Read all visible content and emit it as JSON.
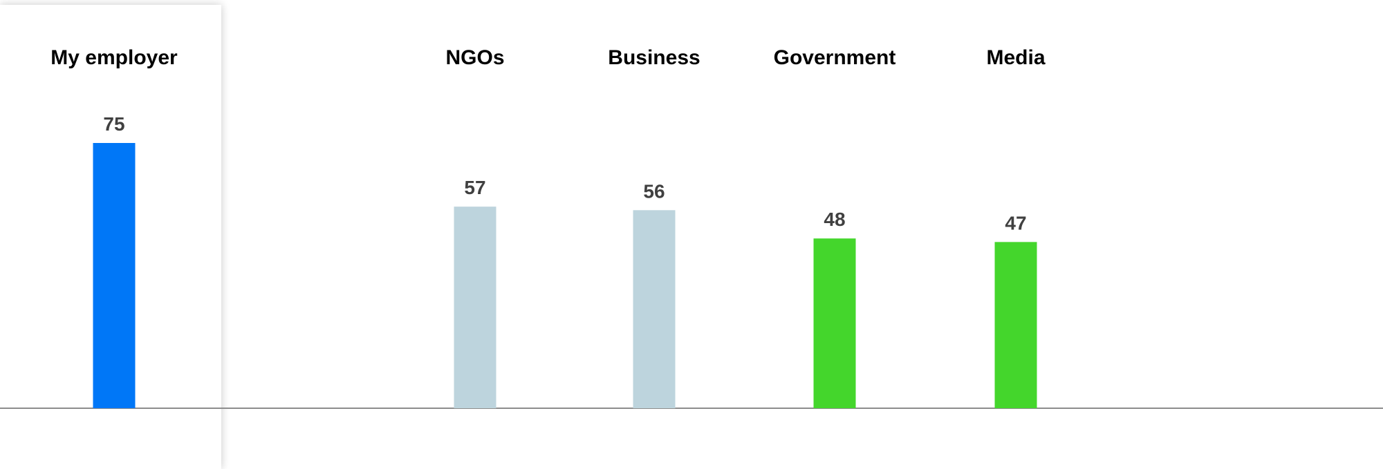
{
  "colors": {
    "highlight": "#0077F7",
    "neutral": "#BDD4DD",
    "green": "#44D62C",
    "baseline": "#8C8C8C",
    "value_text": "#404040"
  },
  "chart_data": {
    "type": "bar",
    "categories": [
      "My employer",
      "NGOs",
      "Business",
      "Government",
      "Media"
    ],
    "values": [
      75,
      57,
      56,
      48,
      47
    ],
    "bar_colors": [
      "highlight",
      "neutral",
      "neutral",
      "green",
      "green"
    ],
    "highlighted_category": "My employer",
    "title": "",
    "xlabel": "",
    "ylabel": "",
    "ylim": [
      0,
      75
    ],
    "grid": false,
    "legend": "none"
  }
}
